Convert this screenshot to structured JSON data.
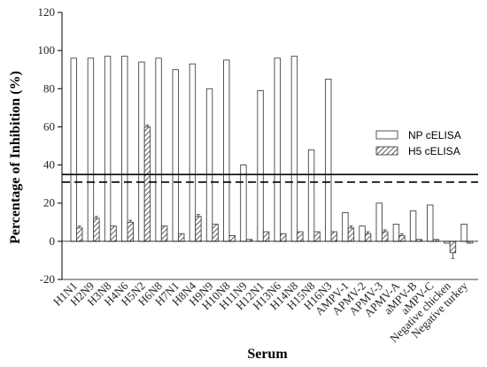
{
  "chart_data": {
    "type": "bar",
    "xlabel": "Serum",
    "ylabel": "Percentage of Inhibition (%)",
    "ylim": [
      -20,
      120
    ],
    "yticks": [
      -20,
      0,
      20,
      40,
      60,
      80,
      100,
      120
    ],
    "grid": false,
    "legend_position": "right",
    "categories": [
      "H1N1",
      "H2N9",
      "H3N8",
      "H4N6",
      "H5N2",
      "H6N8",
      "H7N1",
      "H8N4",
      "H9N9",
      "H10N8",
      "H11N9",
      "H12N1",
      "H13N6",
      "H14N8",
      "H15N8",
      "H16N3",
      "AMPV-1",
      "APMV-2",
      "APMV-3",
      "APMV-A",
      "aMPV-B",
      "aMPV-C",
      "Negative chicken",
      "Negative turkey"
    ],
    "series": [
      {
        "name": "NP cELISA",
        "pattern": "open",
        "values": [
          96,
          96,
          97,
          97,
          94,
          96,
          90,
          93,
          80,
          95,
          40,
          79,
          96,
          97,
          48,
          85,
          15,
          8,
          20,
          9,
          16,
          19,
          -1,
          9
        ],
        "errors": [
          0,
          0,
          0,
          0,
          0,
          0,
          0,
          0,
          0,
          0,
          0,
          0,
          0,
          0,
          0,
          0,
          0,
          0,
          0,
          0,
          0,
          0,
          0,
          0
        ]
      },
      {
        "name": "H5 cELISA",
        "pattern": "hatched",
        "values": [
          7,
          12,
          8,
          10,
          60,
          8,
          4,
          13,
          9,
          3,
          1,
          5,
          4,
          5,
          5,
          5,
          7,
          4,
          5,
          3,
          1,
          1,
          -6,
          -1
        ],
        "errors": [
          1,
          1,
          0,
          1,
          1,
          0,
          0,
          1,
          0,
          0,
          0,
          0,
          0,
          0,
          0,
          0,
          1,
          1,
          1,
          1,
          0,
          0,
          3,
          0
        ]
      }
    ],
    "reference_lines": [
      {
        "value": 35,
        "style": "solid"
      },
      {
        "value": 31,
        "style": "dashed"
      }
    ],
    "colors": {
      "bar_stroke": "#444444",
      "hatch": "#333333",
      "line": "#000000"
    }
  }
}
